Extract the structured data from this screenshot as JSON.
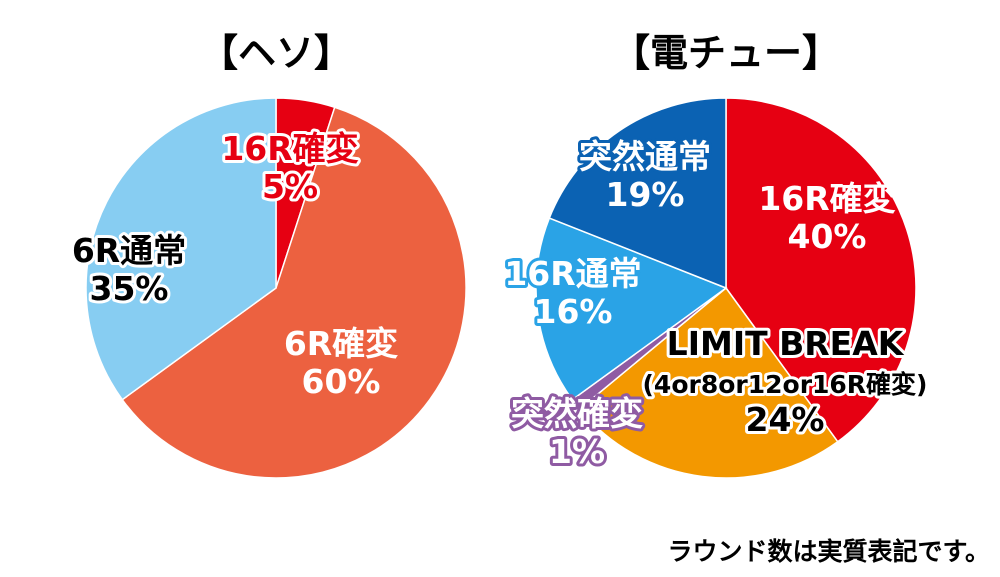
{
  "note": "ラウンド数は実質表記です。",
  "chart_data": [
    {
      "type": "pie",
      "title": "【ヘソ】",
      "slices": [
        {
          "lines": [
            "16R確変",
            "5%"
          ],
          "value": 5,
          "color": "#e60012",
          "text_color": "#e60012",
          "outline": "#ffffff"
        },
        {
          "lines": [
            "6R確変",
            "60%"
          ],
          "value": 60,
          "color": "#ec6140",
          "text_color": "#ffffff",
          "outline": ""
        },
        {
          "lines": [
            "6R通常",
            "35%"
          ],
          "value": 35,
          "color": "#87cdf2",
          "text_color": "#000000",
          "outline": "#ffffff"
        }
      ]
    },
    {
      "type": "pie",
      "title": "【電チュー】",
      "slices": [
        {
          "lines": [
            "16R確変",
            "40%"
          ],
          "value": 40,
          "color": "#e60012",
          "text_color": "#ffffff",
          "outline": ""
        },
        {
          "lines": [
            "LIMIT BREAK",
            "(4or8or12or16R確変)",
            "24%"
          ],
          "value": 24,
          "color": "#f39800",
          "text_color": "#000000",
          "outline": "#ffffff"
        },
        {
          "lines": [
            "突然確変",
            "1%"
          ],
          "value": 1,
          "color": "#8f5ba3",
          "text_color": "#ffffff",
          "outline": "#8f5ba3"
        },
        {
          "lines": [
            "16R通常",
            "16%"
          ],
          "value": 16,
          "color": "#2aa3e6",
          "text_color": "#ffffff",
          "outline": "#2aa3e6"
        },
        {
          "lines": [
            "突然通常",
            "19%"
          ],
          "value": 19,
          "color": "#0b62b3",
          "text_color": "#ffffff",
          "outline": "#0b62b3"
        }
      ]
    }
  ]
}
